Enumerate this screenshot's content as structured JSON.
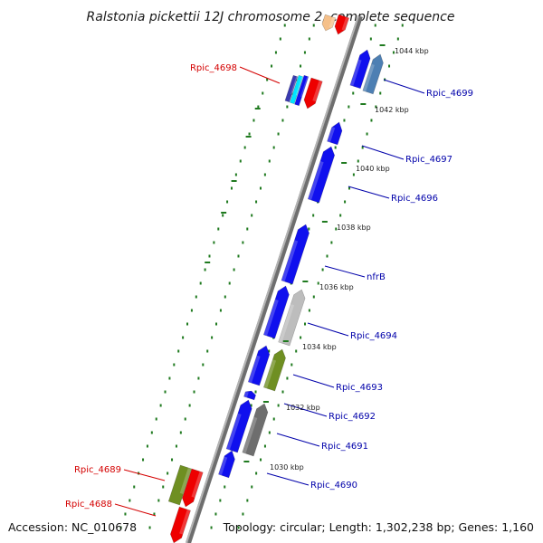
{
  "title": "Ralstonia pickettii 12J chromosome 2, complete sequence",
  "accession": "Accession: NC_010678",
  "topology": "Topology: circular; Length: 1,302,238 bp; Genes: 1,160",
  "colors": {
    "backbone": "#8a8a8a",
    "dots": "#1f7a1f",
    "forward_label": "#d40000",
    "reverse_label": "#0000aa"
  },
  "scale_ticks": [
    {
      "label": "1044 kbp",
      "kbp": 1044
    },
    {
      "label": "1042 kbp",
      "kbp": 1042
    },
    {
      "label": "1040 kbp",
      "kbp": 1040
    },
    {
      "label": "1038 kbp",
      "kbp": 1038
    },
    {
      "label": "1036 kbp",
      "kbp": 1036
    },
    {
      "label": "1034 kbp",
      "kbp": 1034
    },
    {
      "label": "1032 kbp",
      "kbp": 1032
    },
    {
      "label": "1030 kbp",
      "kbp": 1030
    }
  ],
  "gene_labels": [
    {
      "text": "Rpic_4698",
      "strand": "forward"
    },
    {
      "text": "Rpic_4699",
      "strand": "reverse"
    },
    {
      "text": "Rpic_4697",
      "strand": "reverse"
    },
    {
      "text": "Rpic_4696",
      "strand": "reverse"
    },
    {
      "text": "nfrB",
      "strand": "reverse"
    },
    {
      "text": "Rpic_4694",
      "strand": "reverse"
    },
    {
      "text": "Rpic_4693",
      "strand": "reverse"
    },
    {
      "text": "Rpic_4692",
      "strand": "reverse"
    },
    {
      "text": "Rpic_4691",
      "strand": "reverse"
    },
    {
      "text": "Rpic_4690",
      "strand": "reverse"
    },
    {
      "text": "Rpic_4689",
      "strand": "forward"
    },
    {
      "text": "Rpic_4688",
      "strand": "forward"
    }
  ]
}
